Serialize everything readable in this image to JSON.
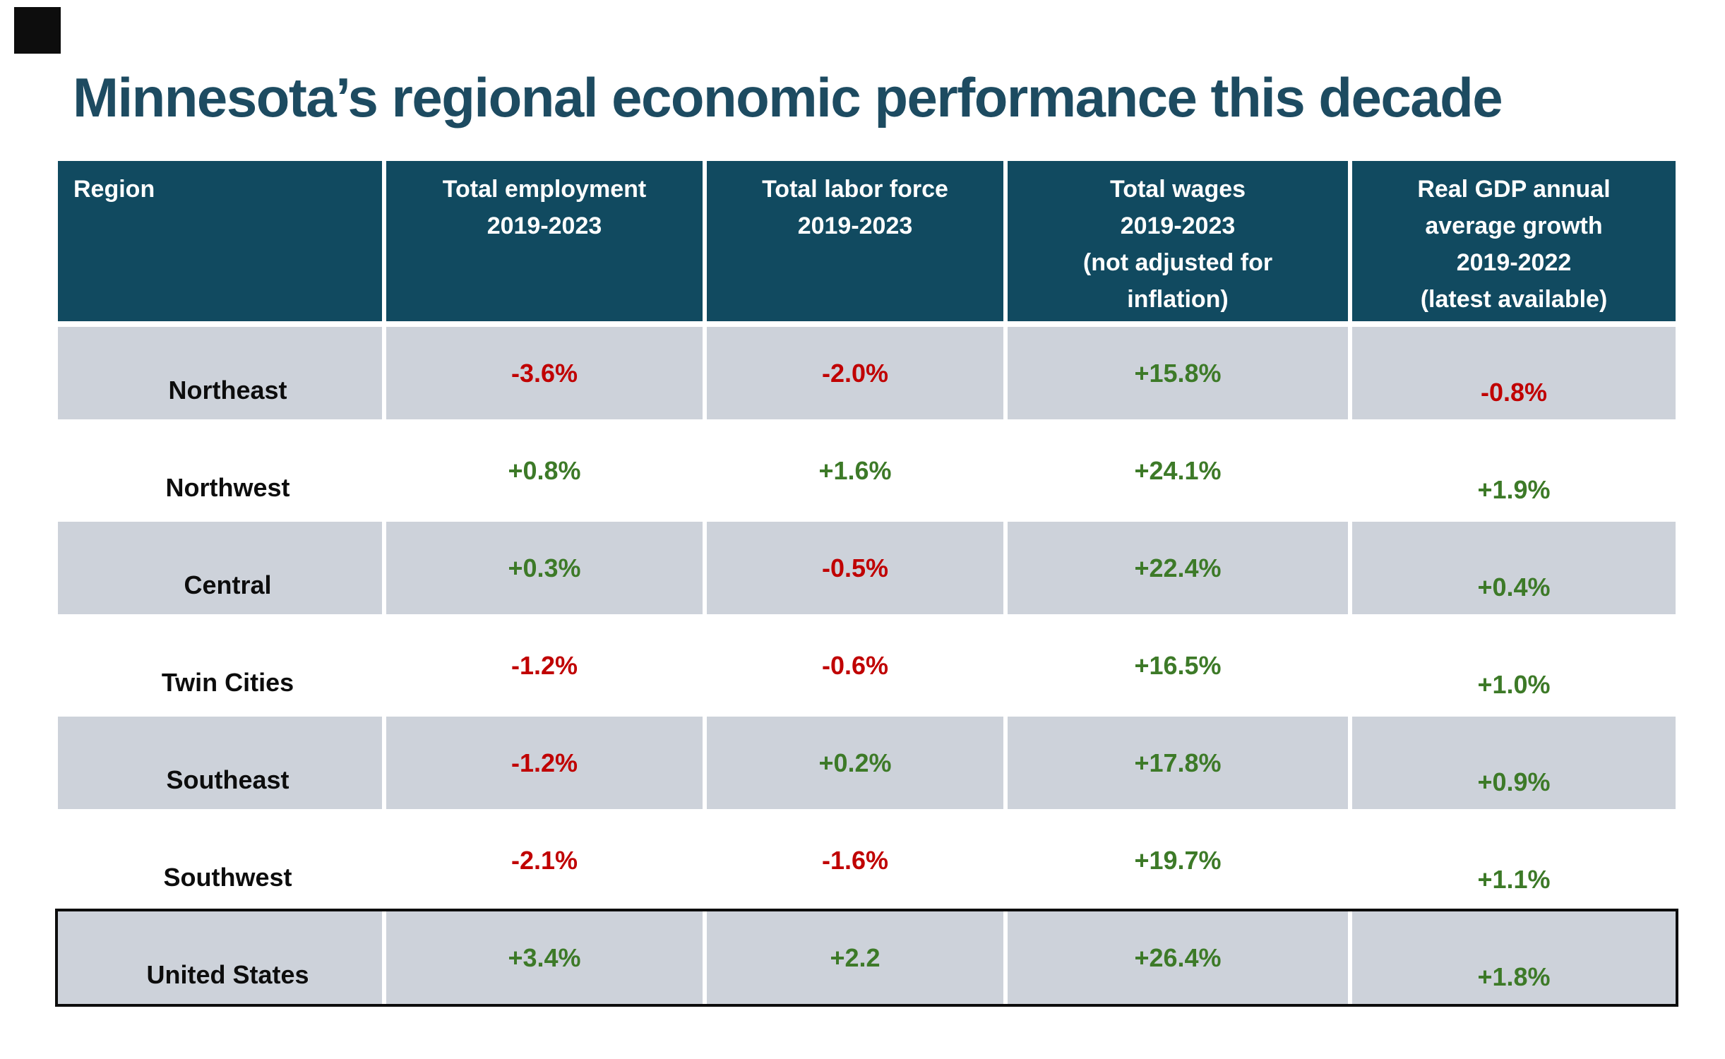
{
  "title": "Minnesota’s regional economic performance this decade",
  "icons": {
    "corner_mark": "dark-square"
  },
  "colors": {
    "title_text": "#1D4B61",
    "header_bg": "#114A60",
    "header_text": "#FFFFFF",
    "shaded_row_bg": "#CDD2DA",
    "plain_row_bg": "#FFFFFF",
    "positive_value": "#3D7A28",
    "negative_value": "#C00000",
    "region_text": "#0D0D0D",
    "us_row_border": "#0D0D0D"
  },
  "table": {
    "header": [
      {
        "lines": [
          "Region"
        ],
        "align": "left"
      },
      {
        "lines": [
          "Total employment",
          "2019-2023"
        ],
        "align": "center"
      },
      {
        "lines": [
          "Total labor force",
          "2019-2023"
        ],
        "align": "center"
      },
      {
        "lines": [
          "Total wages",
          "2019-2023",
          "(not adjusted for",
          "inflation)"
        ],
        "align": "center"
      },
      {
        "lines": [
          "Real GDP annual",
          "average growth",
          "2019-2022",
          "(latest available)"
        ],
        "align": "center"
      }
    ],
    "rows": [
      {
        "region": "Northeast",
        "values": [
          "-3.6%",
          "-2.0%",
          "+15.8%",
          "-0.8%"
        ],
        "shaded": true,
        "highlighted": false
      },
      {
        "region": "Northwest",
        "values": [
          "+0.8%",
          "+1.6%",
          "+24.1%",
          "+1.9%"
        ],
        "shaded": false,
        "highlighted": false
      },
      {
        "region": "Central",
        "values": [
          "+0.3%",
          "-0.5%",
          "+22.4%",
          "+0.4%"
        ],
        "shaded": true,
        "highlighted": false
      },
      {
        "region": "Twin Cities",
        "values": [
          "-1.2%",
          "-0.6%",
          "+16.5%",
          "+1.0%"
        ],
        "shaded": false,
        "highlighted": false
      },
      {
        "region": "Southeast",
        "values": [
          "-1.2%",
          "+0.2%",
          "+17.8%",
          "+0.9%"
        ],
        "shaded": true,
        "highlighted": false
      },
      {
        "region": "Southwest",
        "values": [
          "-2.1%",
          "-1.6%",
          "+19.7%",
          "+1.1%"
        ],
        "shaded": false,
        "highlighted": false
      },
      {
        "region": "United States",
        "values": [
          "+3.4%",
          "+2.2",
          "+26.4%",
          "+1.8%"
        ],
        "shaded": true,
        "highlighted": true
      }
    ]
  },
  "chart_data": {
    "type": "table",
    "title": "Minnesota’s regional economic performance this decade",
    "columns": [
      "Region",
      "Total employment 2019-2023",
      "Total labor force 2019-2023",
      "Total wages 2019-2023 (not adjusted for inflation)",
      "Real GDP annual average growth 2019-2022 (latest available)"
    ],
    "rows": [
      [
        "Northeast",
        "-3.6%",
        "-2.0%",
        "+15.8%",
        "-0.8%"
      ],
      [
        "Northwest",
        "+0.8%",
        "+1.6%",
        "+24.1%",
        "+1.9%"
      ],
      [
        "Central",
        "+0.3%",
        "-0.5%",
        "+22.4%",
        "+0.4%"
      ],
      [
        "Twin Cities",
        "-1.2%",
        "-0.6%",
        "+16.5%",
        "+1.0%"
      ],
      [
        "Southeast",
        "-1.2%",
        "+0.2%",
        "+17.8%",
        "+0.9%"
      ],
      [
        "Southwest",
        "-2.1%",
        "-1.6%",
        "+19.7%",
        "+1.1%"
      ],
      [
        "United States",
        "+3.4%",
        "+2.2",
        "+26.4%",
        "+1.8%"
      ]
    ],
    "value_color_rule": "values beginning with + are green, values beginning with - are red"
  }
}
